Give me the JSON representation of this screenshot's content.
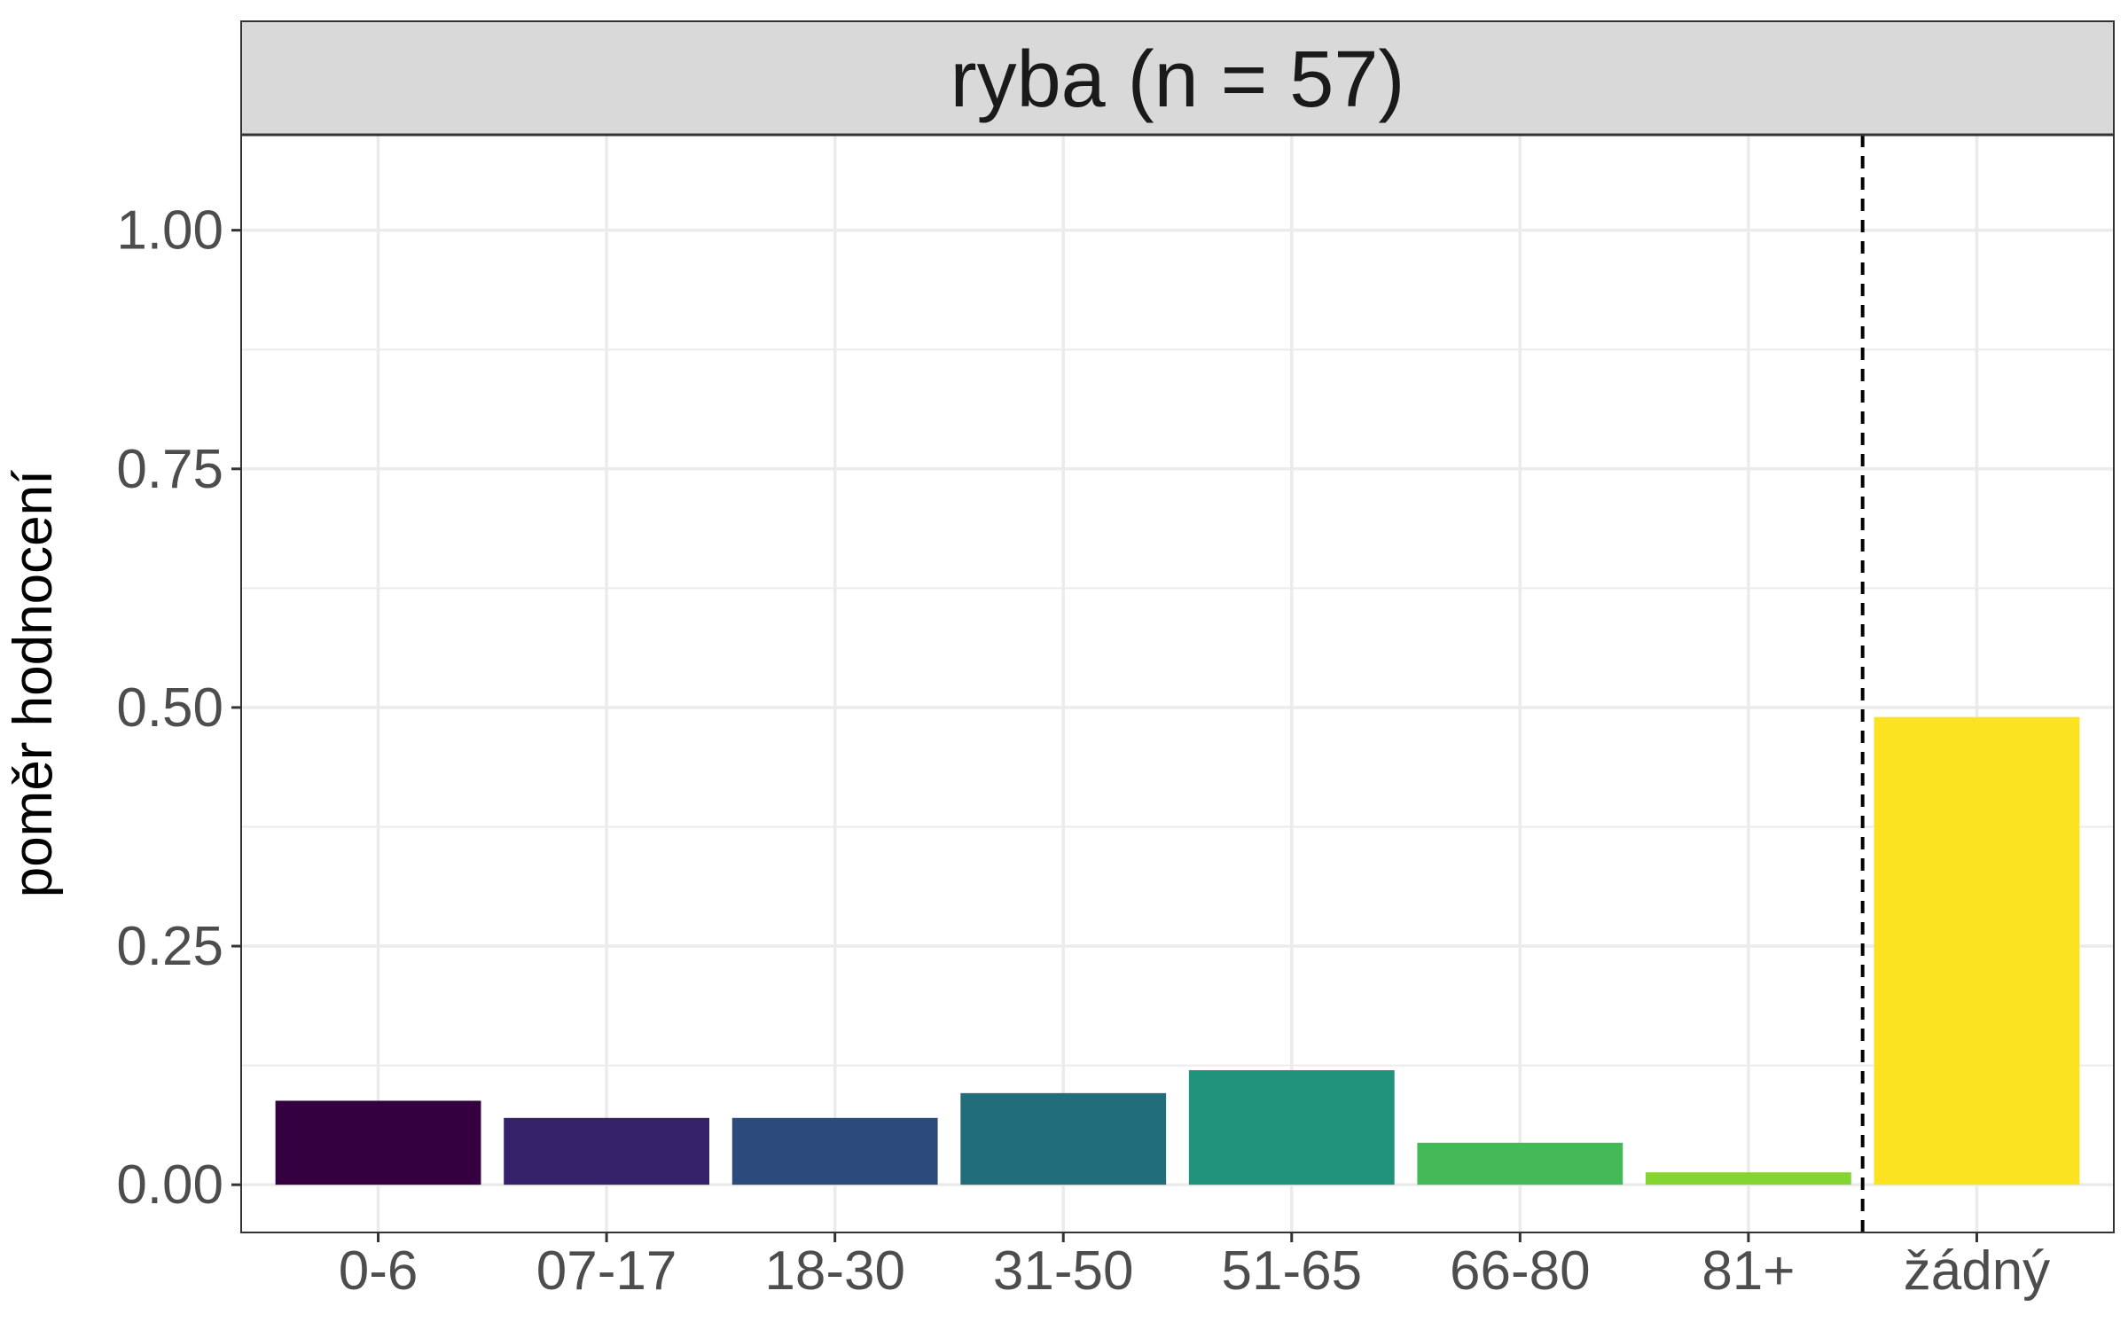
{
  "chart_data": {
    "type": "bar",
    "facet_title": "ryba (n = 57)",
    "ylabel": "poměr hodnocení",
    "xlabel": "",
    "categories": [
      "0-6",
      "07-17",
      "18-30",
      "31-50",
      "51-65",
      "66-80",
      "81+",
      "žádný"
    ],
    "values": [
      0.088,
      0.07,
      0.07,
      0.096,
      0.12,
      0.044,
      0.013,
      0.49
    ],
    "colors": [
      "#350040",
      "#36226A",
      "#2C4A7B",
      "#216D7C",
      "#21937A",
      "#45B957",
      "#84D432",
      "#FBE321"
    ],
    "ylim": [
      -0.05,
      1.1
    ],
    "yticks": [
      0,
      0.25,
      0.5,
      0.75,
      1
    ],
    "ytick_labels": [
      "0.00",
      "0.25",
      "0.50",
      "0.75",
      "1.00"
    ],
    "grid": true,
    "reference_line": {
      "between": [
        "81+",
        "žádný"
      ],
      "style": "dashed"
    },
    "legend": "none"
  }
}
